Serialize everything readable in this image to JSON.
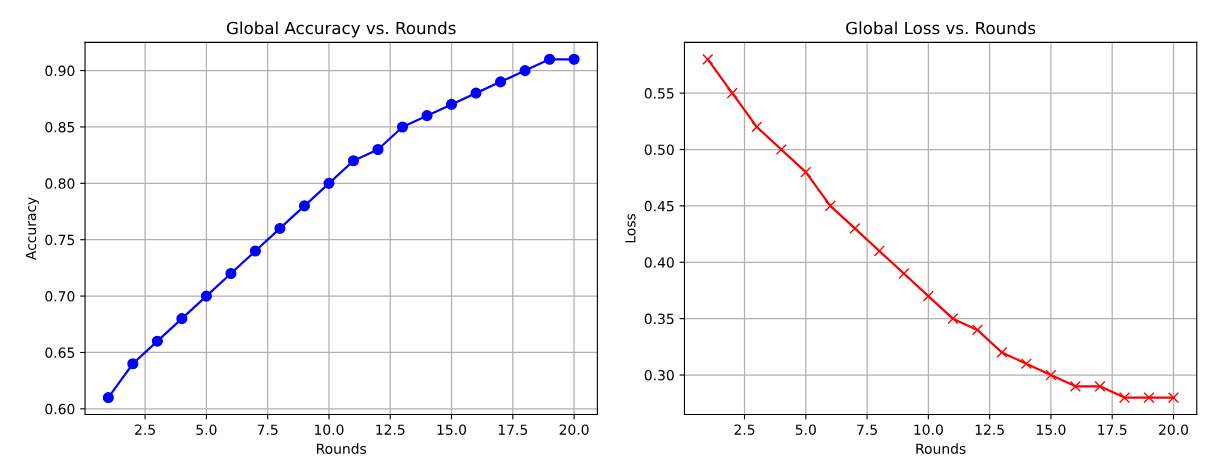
{
  "chart_data": [
    {
      "type": "line",
      "title": "Global Accuracy vs. Rounds",
      "xlabel": "Rounds",
      "ylabel": "Accuracy",
      "x": [
        1,
        2,
        3,
        4,
        5,
        6,
        7,
        8,
        9,
        10,
        11,
        12,
        13,
        14,
        15,
        16,
        17,
        18,
        19,
        20
      ],
      "series": [
        {
          "color": "#0000ff",
          "values": [
            0.61,
            0.64,
            0.66,
            0.68,
            0.7,
            0.72,
            0.74,
            0.76,
            0.78,
            0.8,
            0.82,
            0.83,
            0.85,
            0.86,
            0.87,
            0.88,
            0.89,
            0.9,
            0.91,
            0.91
          ]
        }
      ],
      "xlim": [
        0.05,
        20.95
      ],
      "ylim": [
        0.595,
        0.925
      ],
      "xticks": [
        {
          "value": 2.5,
          "label": "2.5"
        },
        {
          "value": 5,
          "label": "5.0"
        },
        {
          "value": 7.5,
          "label": "7.5"
        },
        {
          "value": 10,
          "label": "10.0"
        },
        {
          "value": 12.5,
          "label": "12.5"
        },
        {
          "value": 15,
          "label": "15.0"
        },
        {
          "value": 17.5,
          "label": "17.5"
        },
        {
          "value": 20,
          "label": "20.0"
        }
      ],
      "yticks": [
        {
          "value": 0.6,
          "label": "0.60"
        },
        {
          "value": 0.65,
          "label": "0.65"
        },
        {
          "value": 0.7,
          "label": "0.70"
        },
        {
          "value": 0.75,
          "label": "0.75"
        },
        {
          "value": 0.8,
          "label": "0.80"
        },
        {
          "value": 0.85,
          "label": "0.85"
        },
        {
          "value": 0.9,
          "label": "0.90"
        }
      ],
      "grid": true,
      "marker": "circle",
      "line_style": "solid"
    },
    {
      "type": "line",
      "title": "Global Loss vs. Rounds",
      "xlabel": "Rounds",
      "ylabel": "Loss",
      "x": [
        1,
        2,
        3,
        4,
        5,
        6,
        7,
        8,
        9,
        10,
        11,
        12,
        13,
        14,
        15,
        16,
        17,
        18,
        19,
        20
      ],
      "series": [
        {
          "color": "#ff0000",
          "values": [
            0.58,
            0.55,
            0.52,
            0.5,
            0.48,
            0.45,
            0.43,
            0.41,
            0.39,
            0.37,
            0.35,
            0.34,
            0.32,
            0.31,
            0.3,
            0.29,
            0.29,
            0.28,
            0.28,
            0.28
          ]
        }
      ],
      "xlim": [
        0.05,
        20.95
      ],
      "ylim": [
        0.265,
        0.595
      ],
      "xticks": [
        {
          "value": 2.5,
          "label": "2.5"
        },
        {
          "value": 5,
          "label": "5.0"
        },
        {
          "value": 7.5,
          "label": "7.5"
        },
        {
          "value": 10,
          "label": "10.0"
        },
        {
          "value": 12.5,
          "label": "12.5"
        },
        {
          "value": 15,
          "label": "15.0"
        },
        {
          "value": 17.5,
          "label": "17.5"
        },
        {
          "value": 20,
          "label": "20.0"
        }
      ],
      "yticks": [
        {
          "value": 0.3,
          "label": "0.30"
        },
        {
          "value": 0.35,
          "label": "0.35"
        },
        {
          "value": 0.4,
          "label": "0.40"
        },
        {
          "value": 0.45,
          "label": "0.45"
        },
        {
          "value": 0.5,
          "label": "0.50"
        },
        {
          "value": 0.55,
          "label": "0.55"
        }
      ],
      "grid": true,
      "marker": "cross",
      "line_style": "solid"
    }
  ]
}
